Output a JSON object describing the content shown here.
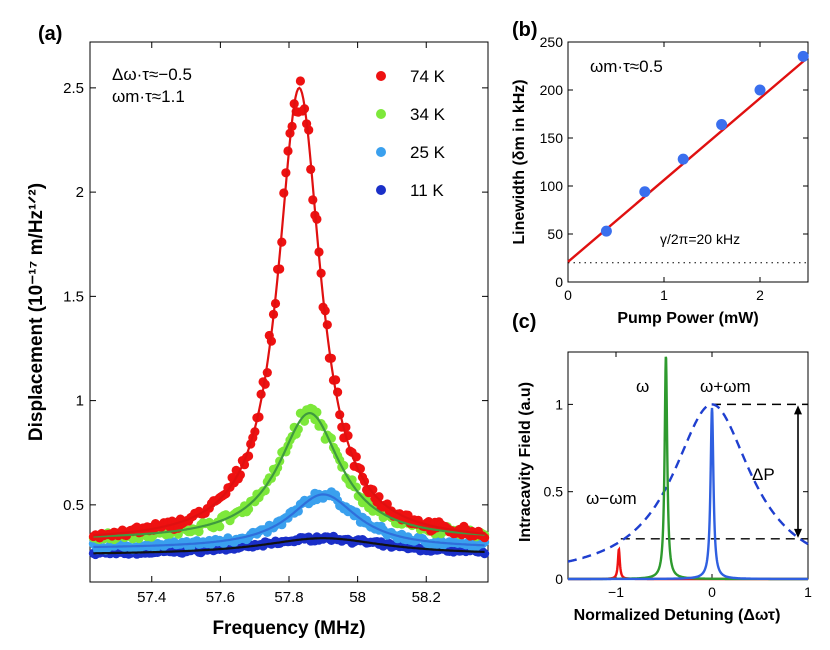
{
  "chart_data": [
    {
      "id": "a",
      "type": "scatter",
      "panel_label": "(a)",
      "xlabel": "Frequency (MHz)",
      "ylabel": "Displacement (10⁻¹⁷ m/Hz¹ᐟ²)",
      "xlim": [
        57.22,
        58.38
      ],
      "ylim": [
        0.13,
        2.72
      ],
      "xticks": [
        57.4,
        57.6,
        57.8,
        58,
        58.2
      ],
      "yticks": [
        0.5,
        1,
        1.5,
        2,
        2.5
      ],
      "annotations": [
        "Δω·τ≈−0.5",
        "ωm·τ≈1.1"
      ],
      "series": [
        {
          "name": "74 K",
          "color": "#ee1111",
          "fit_color": "#e01010",
          "baseline": 0.32,
          "amplitude": 2.18,
          "center": 57.83,
          "hwhm": 0.075,
          "noise": 0.04
        },
        {
          "name": "34 K",
          "color": "#7de83a",
          "fit_color": "#3f9a3f",
          "baseline": 0.33,
          "amplitude": 0.61,
          "center": 57.86,
          "hwhm": 0.11,
          "noise": 0.035
        },
        {
          "name": "25 K",
          "color": "#3aa0ee",
          "fit_color": "#2f6fdb",
          "baseline": 0.29,
          "amplitude": 0.26,
          "center": 57.9,
          "hwhm": 0.12,
          "noise": 0.03
        },
        {
          "name": "11 K",
          "color": "#1a2fc8",
          "fit_color": "#111111",
          "baseline": 0.26,
          "amplitude": 0.08,
          "center": 57.9,
          "hwhm": 0.22,
          "noise": 0.02
        }
      ]
    },
    {
      "id": "b",
      "type": "line",
      "panel_label": "(b)",
      "xlabel": "Pump Power (mW)",
      "ylabel": "Linewidth (δm in kHz)",
      "xlim": [
        0,
        2.5
      ],
      "ylim": [
        0,
        250
      ],
      "xticks": [
        0,
        1,
        2
      ],
      "yticks": [
        0,
        50,
        100,
        150,
        200,
        250
      ],
      "points": {
        "x": [
          0.4,
          0.8,
          1.2,
          1.6,
          2.0,
          2.45
        ],
        "y": [
          53,
          94,
          128,
          164,
          200,
          235
        ]
      },
      "fit": {
        "x": [
          0,
          2.5
        ],
        "y": [
          21,
          234
        ]
      },
      "reference_line": {
        "y": 20,
        "label": "γ/2π=20 kHz"
      },
      "annotation": "ωm·τ≈0.5"
    },
    {
      "id": "c",
      "type": "line",
      "panel_label": "(c)",
      "xlabel": "Normalized Detuning (Δωτ)",
      "ylabel": "Intracavity Field (a.u)",
      "xlim": [
        -1.5,
        1
      ],
      "ylim": [
        0,
        1.3
      ],
      "xticks": [
        -1,
        0,
        1
      ],
      "yticks": [
        0,
        0.5,
        1
      ],
      "labels": {
        "omega": "ω",
        "omega_plus": "ω+ωm",
        "omega_minus": "ω−ωm",
        "delta_p": "ΔP"
      },
      "curves": [
        {
          "name": "envelope",
          "style": "dashed",
          "color": "#1f3fcf",
          "center": 0,
          "hwhm": 0.5,
          "peak": 1.0
        },
        {
          "name": "ω−ωm",
          "color": "#ee1111",
          "center": -0.97,
          "hwhm": 0.012,
          "peak": 0.17
        },
        {
          "name": "ω",
          "color": "#2e9a2e",
          "center": -0.48,
          "hwhm": 0.016,
          "peak": 1.28
        },
        {
          "name": "ω+ωm",
          "color": "#2f5fe0",
          "center": 0,
          "hwhm": 0.018,
          "peak": 0.98
        }
      ],
      "levels": {
        "top": 1.0,
        "bottom": 0.23
      }
    }
  ]
}
